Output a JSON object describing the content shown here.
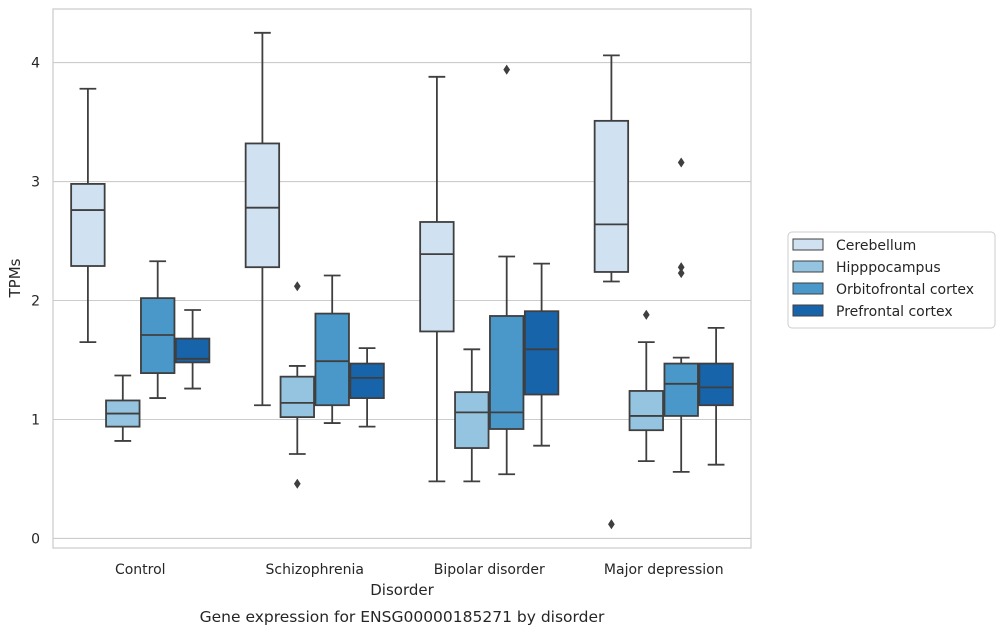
{
  "chart_data": {
    "type": "box",
    "title": "",
    "caption": "Gene expression for ENSG00000185271 by disorder",
    "xlabel": "Disorder",
    "ylabel": "TPMs",
    "ylim": [
      -0.08,
      4.45
    ],
    "yticks": [
      0,
      1,
      2,
      3,
      4
    ],
    "grid": "horizontal",
    "legend_position": "right",
    "categories": [
      "Control",
      "Schizophrenia",
      "Bipolar disorder",
      "Major depression"
    ],
    "series": [
      {
        "name": "Cerebellum",
        "color": "#d0e1f2",
        "boxes": [
          {
            "min": 1.65,
            "q1": 2.29,
            "median": 2.76,
            "q3": 2.98,
            "max": 3.78,
            "outliers": []
          },
          {
            "min": 1.12,
            "q1": 2.28,
            "median": 2.78,
            "q3": 3.32,
            "max": 4.25,
            "outliers": []
          },
          {
            "min": 0.48,
            "q1": 1.74,
            "median": 2.39,
            "q3": 2.66,
            "max": 3.88,
            "outliers": []
          },
          {
            "min": 2.16,
            "q1": 2.24,
            "median": 2.64,
            "q3": 3.51,
            "max": 4.06,
            "outliers": [
              0.12
            ]
          }
        ]
      },
      {
        "name": "Hipppocampus",
        "color": "#94c4df",
        "boxes": [
          {
            "min": 0.82,
            "q1": 0.94,
            "median": 1.05,
            "q3": 1.16,
            "max": 1.37,
            "outliers": []
          },
          {
            "min": 0.71,
            "q1": 1.02,
            "median": 1.14,
            "q3": 1.36,
            "max": 1.45,
            "outliers": [
              2.12,
              0.46
            ]
          },
          {
            "min": 0.48,
            "q1": 0.76,
            "median": 1.06,
            "q3": 1.23,
            "max": 1.59,
            "outliers": []
          },
          {
            "min": 0.65,
            "q1": 0.91,
            "median": 1.03,
            "q3": 1.24,
            "max": 1.65,
            "outliers": [
              1.88
            ]
          }
        ]
      },
      {
        "name": "Orbitofrontal cortex",
        "color": "#4a98c9",
        "boxes": [
          {
            "min": 1.18,
            "q1": 1.39,
            "median": 1.71,
            "q3": 2.02,
            "max": 2.33,
            "outliers": []
          },
          {
            "min": 0.97,
            "q1": 1.12,
            "median": 1.49,
            "q3": 1.89,
            "max": 2.21,
            "outliers": []
          },
          {
            "min": 0.54,
            "q1": 0.92,
            "median": 1.06,
            "q3": 1.87,
            "max": 2.37,
            "outliers": [
              3.94
            ]
          },
          {
            "min": 0.56,
            "q1": 1.03,
            "median": 1.3,
            "q3": 1.47,
            "max": 1.52,
            "outliers": [
              3.16,
              2.28,
              2.23
            ]
          }
        ]
      },
      {
        "name": "Prefrontal cortex",
        "color": "#1764ab",
        "boxes": [
          {
            "min": 1.26,
            "q1": 1.48,
            "median": 1.51,
            "q3": 1.68,
            "max": 1.92,
            "outliers": []
          },
          {
            "min": 0.94,
            "q1": 1.18,
            "median": 1.35,
            "q3": 1.47,
            "max": 1.6,
            "outliers": []
          },
          {
            "min": 0.78,
            "q1": 1.21,
            "median": 1.59,
            "q3": 1.91,
            "max": 2.31,
            "outliers": []
          },
          {
            "min": 0.62,
            "q1": 1.12,
            "median": 1.27,
            "q3": 1.47,
            "max": 1.77,
            "outliers": []
          }
        ]
      }
    ]
  }
}
